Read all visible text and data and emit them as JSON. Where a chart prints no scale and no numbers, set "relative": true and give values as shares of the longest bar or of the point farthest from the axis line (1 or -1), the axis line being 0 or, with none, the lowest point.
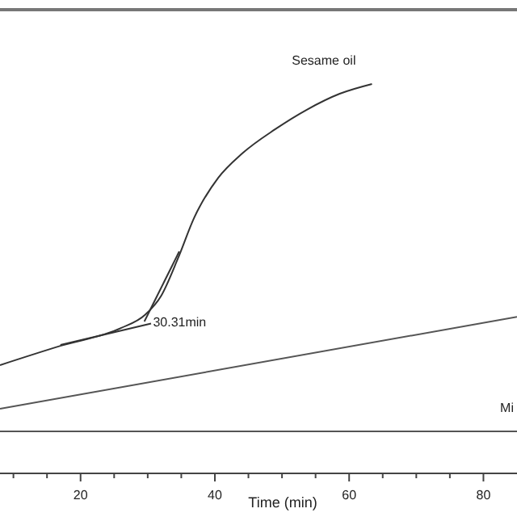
{
  "chart_data": {
    "type": "line",
    "relative": true,
    "xlabel": "Time (min)",
    "xlim": [
      8,
      85
    ],
    "xticks": [
      {
        "value": 10,
        "label": null
      },
      {
        "value": 15,
        "label": null
      },
      20,
      {
        "value": 25,
        "label": null
      },
      {
        "value": 30,
        "label": null
      },
      {
        "value": 35,
        "label": null
      },
      40,
      {
        "value": 45,
        "label": null
      },
      {
        "value": 50,
        "label": null
      },
      {
        "value": 55,
        "label": null
      },
      60,
      {
        "value": 65,
        "label": null
      },
      {
        "value": 70,
        "label": null
      },
      {
        "value": 75,
        "label": null
      },
      80
    ],
    "series": [
      {
        "name": "Sesame oil",
        "color": "#333333",
        "x": [
          8,
          17.1,
          26,
          29.6,
          32,
          34.5,
          36.9,
          40.5,
          44.1,
          49,
          53.7,
          58.6,
          63.4
        ],
        "values": [
          0.278,
          0.328,
          0.373,
          0.407,
          0.456,
          0.552,
          0.656,
          0.759,
          0.822,
          0.884,
          0.934,
          0.975,
          1.0
        ]
      },
      {
        "color": "#555555",
        "x": [
          8,
          85
        ],
        "values": [
          0.166,
          0.402
        ]
      },
      {
        "name": "Mi",
        "color": "#555555",
        "x": [
          8,
          85
        ],
        "values": [
          0.108,
          0.108
        ]
      },
      {
        "color": "#333333",
        "x": [
          17,
          30.5
        ],
        "values": [
          0.33,
          0.385
        ]
      },
      {
        "color": "#333333",
        "x": [
          29.5,
          34.7
        ],
        "values": [
          0.39,
          0.57
        ]
      }
    ],
    "annotations": [
      {
        "text": "30.31min",
        "x": 30.31,
        "y": 0.39
      }
    ],
    "marker": "none"
  }
}
